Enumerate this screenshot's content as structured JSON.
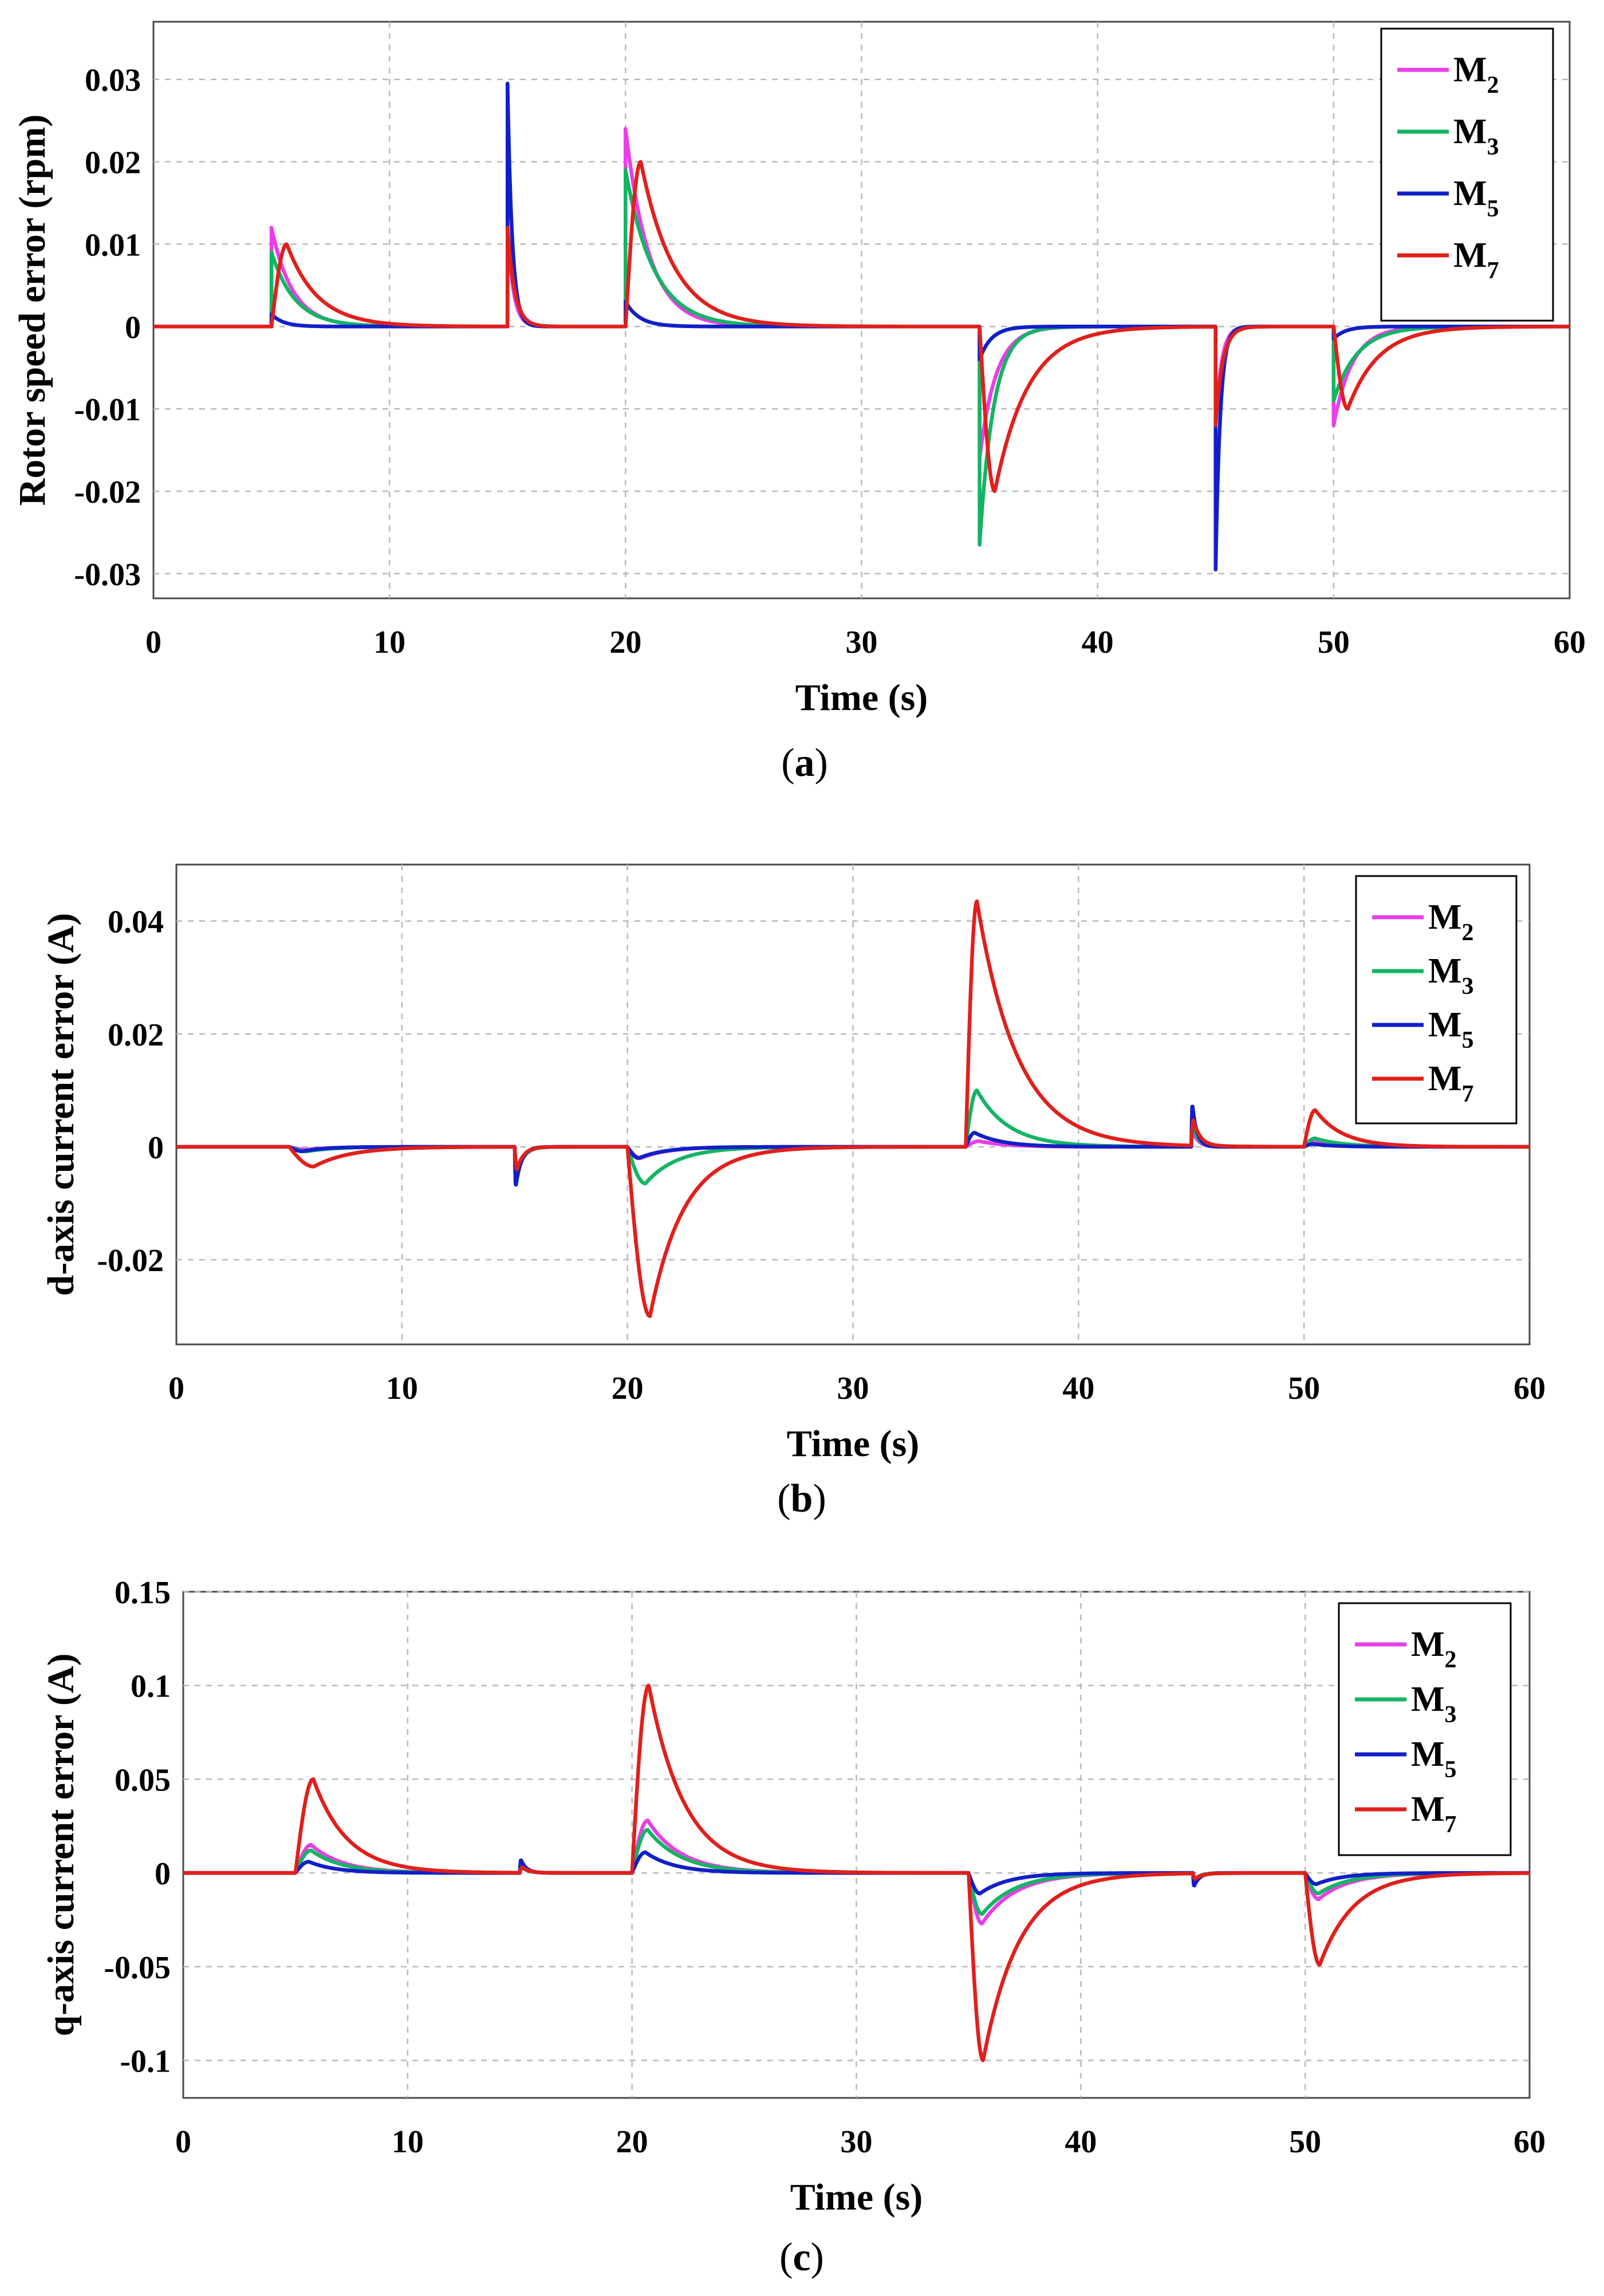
{
  "chart_data": [
    {
      "type": "line",
      "panel": "a",
      "caption": "(a)",
      "caption_letter": "a",
      "xlabel": "Time (s)",
      "ylabel": "Rotor speed error (rpm)",
      "xlim": [
        0,
        60
      ],
      "ylim": [
        -0.033,
        0.037
      ],
      "xticks": [
        0,
        10,
        20,
        30,
        40,
        50,
        60
      ],
      "yticks": [
        -0.03,
        -0.02,
        -0.01,
        0,
        0.01,
        0.02,
        0.03
      ],
      "ytick_labels": [
        "-0.03",
        "-0.02",
        "-0.01",
        "0",
        "0.01",
        "0.02",
        "0.03"
      ],
      "grid": true,
      "legend": "top-right",
      "series": [
        {
          "name": "M2",
          "main": "M",
          "sub": "2",
          "color": "#e83ee8",
          "events": [
            [
              5,
              0.012,
              0.0,
              0.9
            ],
            [
              15,
              0.012,
              0.0,
              0.25
            ],
            [
              20,
              0.024,
              0.0,
              1.0
            ],
            [
              35,
              -0.016,
              0.0,
              0.7
            ],
            [
              45,
              -0.012,
              0.0,
              0.25
            ],
            [
              50,
              -0.012,
              0.0,
              0.8
            ]
          ]
        },
        {
          "name": "M3",
          "main": "M",
          "sub": "3",
          "color": "#14b464",
          "events": [
            [
              5,
              0.009,
              0.0,
              1.0
            ],
            [
              15,
              0.012,
              0.0,
              0.3
            ],
            [
              20,
              0.019,
              0.0,
              1.2
            ],
            [
              35,
              -0.0265,
              0.0,
              0.6
            ],
            [
              45,
              -0.012,
              0.0,
              0.3
            ],
            [
              50,
              -0.009,
              0.0,
              1.0
            ]
          ]
        },
        {
          "name": "M5",
          "main": "M",
          "sub": "5",
          "color": "#1020c8",
          "events": [
            [
              5,
              0.0015,
              0.0,
              0.5
            ],
            [
              15,
              0.0295,
              0.0,
              0.2
            ],
            [
              20,
              0.003,
              0.0,
              0.6
            ],
            [
              35,
              -0.004,
              0.0,
              0.5
            ],
            [
              45,
              -0.0295,
              0.0,
              0.2
            ],
            [
              50,
              -0.0015,
              0.0,
              0.5
            ]
          ]
        },
        {
          "name": "M7",
          "main": "M",
          "sub": "7",
          "color": "#e0201c",
          "events": [
            [
              5,
              0.01,
              0.65,
              1.3
            ],
            [
              15,
              0.012,
              0.0,
              0.3
            ],
            [
              20,
              0.02,
              0.65,
              1.4
            ],
            [
              35,
              -0.02,
              0.65,
              1.4
            ],
            [
              45,
              -0.012,
              0.0,
              0.3
            ],
            [
              50,
              -0.01,
              0.6,
              1.3
            ]
          ]
        }
      ]
    },
    {
      "type": "line",
      "panel": "b",
      "caption": "(b)",
      "caption_letter": "b",
      "xlabel": "Time (s)",
      "ylabel": "d-axis current error (A)",
      "xlim": [
        0,
        60
      ],
      "ylim": [
        -0.035,
        0.05
      ],
      "xticks": [
        0,
        10,
        20,
        30,
        40,
        50,
        60
      ],
      "yticks": [
        -0.02,
        0,
        0.02,
        0.04
      ],
      "ytick_labels": [
        "-0.02",
        "0",
        "0.02",
        "0.04"
      ],
      "grid": true,
      "legend": "top-right",
      "series": [
        {
          "name": "M2",
          "main": "M",
          "sub": "2",
          "color": "#e83ee8",
          "events": [
            [
              5,
              -0.0005,
              0.8,
              1.2
            ],
            [
              15,
              -0.005,
              0.1,
              0.3
            ],
            [
              20,
              -0.002,
              0.6,
              1.2
            ],
            [
              35,
              0.001,
              0.6,
              1.2
            ],
            [
              45,
              0.003,
              0.05,
              0.25
            ],
            [
              50,
              0.0008,
              0.5,
              1.2
            ]
          ]
        },
        {
          "name": "M3",
          "main": "M",
          "sub": "3",
          "color": "#14b464",
          "events": [
            [
              5,
              -0.0008,
              0.8,
              1.2
            ],
            [
              15,
              -0.005,
              0.1,
              0.3
            ],
            [
              20,
              -0.0065,
              0.8,
              1.4
            ],
            [
              35,
              0.01,
              0.5,
              1.4
            ],
            [
              45,
              0.004,
              0.05,
              0.25
            ],
            [
              50,
              0.0015,
              0.5,
              1.2
            ]
          ]
        },
        {
          "name": "M5",
          "main": "M",
          "sub": "5",
          "color": "#1020c8",
          "events": [
            [
              5,
              -0.0008,
              0.6,
              1.0
            ],
            [
              15,
              -0.007,
              0.05,
              0.25
            ],
            [
              20,
              -0.002,
              0.5,
              1.2
            ],
            [
              35,
              0.0025,
              0.4,
              1.2
            ],
            [
              45,
              0.0075,
              0.05,
              0.2
            ],
            [
              50,
              0.0005,
              0.4,
              1.0
            ]
          ]
        },
        {
          "name": "M7",
          "main": "M",
          "sub": "7",
          "color": "#e0201c",
          "events": [
            [
              5,
              -0.0035,
              1.1,
              1.6
            ],
            [
              15,
              -0.004,
              0.1,
              0.3
            ],
            [
              20,
              -0.03,
              1.0,
              1.5
            ],
            [
              35,
              0.0435,
              0.5,
              1.8
            ],
            [
              45,
              0.0045,
              0.1,
              0.3
            ],
            [
              50,
              0.0065,
              0.5,
              1.2
            ]
          ]
        }
      ]
    },
    {
      "type": "line",
      "panel": "c",
      "caption": "(c)",
      "caption_letter": "c",
      "xlabel": "Time (s)",
      "ylabel": "q-axis current error (A)",
      "xlim": [
        0,
        60
      ],
      "ylim": [
        -0.12,
        0.15
      ],
      "xticks": [
        0,
        10,
        20,
        30,
        40,
        50,
        60
      ],
      "yticks": [
        -0.1,
        -0.05,
        0,
        0.05,
        0.1,
        0.15
      ],
      "ytick_labels": [
        "-0.1",
        "-0.05",
        "0",
        "0.05",
        "0.1",
        "0.15"
      ],
      "grid": true,
      "legend": "top-right",
      "series": [
        {
          "name": "M2",
          "main": "M",
          "sub": "2",
          "color": "#e83ee8",
          "events": [
            [
              5,
              0.015,
              0.7,
              1.4
            ],
            [
              15,
              0.003,
              0.1,
              0.3
            ],
            [
              20,
              0.028,
              0.7,
              1.5
            ],
            [
              35,
              -0.027,
              0.6,
              1.5
            ],
            [
              45,
              -0.003,
              0.1,
              0.3
            ],
            [
              50,
              -0.014,
              0.6,
              1.4
            ]
          ]
        },
        {
          "name": "M3",
          "main": "M",
          "sub": "3",
          "color": "#14b464",
          "events": [
            [
              5,
              0.012,
              0.7,
              1.4
            ],
            [
              15,
              0.003,
              0.1,
              0.3
            ],
            [
              20,
              0.023,
              0.7,
              1.5
            ],
            [
              35,
              -0.022,
              0.6,
              1.5
            ],
            [
              45,
              -0.003,
              0.1,
              0.3
            ],
            [
              50,
              -0.011,
              0.6,
              1.4
            ]
          ]
        },
        {
          "name": "M5",
          "main": "M",
          "sub": "5",
          "color": "#1020c8",
          "events": [
            [
              5,
              0.006,
              0.6,
              1.2
            ],
            [
              15,
              0.007,
              0.05,
              0.25
            ],
            [
              20,
              0.011,
              0.6,
              1.3
            ],
            [
              35,
              -0.011,
              0.5,
              1.3
            ],
            [
              45,
              -0.007,
              0.05,
              0.25
            ],
            [
              50,
              -0.006,
              0.5,
              1.2
            ]
          ]
        },
        {
          "name": "M7",
          "main": "M",
          "sub": "7",
          "color": "#e0201c",
          "events": [
            [
              5,
              0.05,
              0.8,
              1.5
            ],
            [
              15,
              0.003,
              0.1,
              0.3
            ],
            [
              20,
              0.1,
              0.75,
              1.6
            ],
            [
              35,
              -0.1,
              0.65,
              1.6
            ],
            [
              45,
              -0.003,
              0.1,
              0.3
            ],
            [
              50,
              -0.049,
              0.65,
              1.5
            ]
          ]
        }
      ]
    }
  ]
}
